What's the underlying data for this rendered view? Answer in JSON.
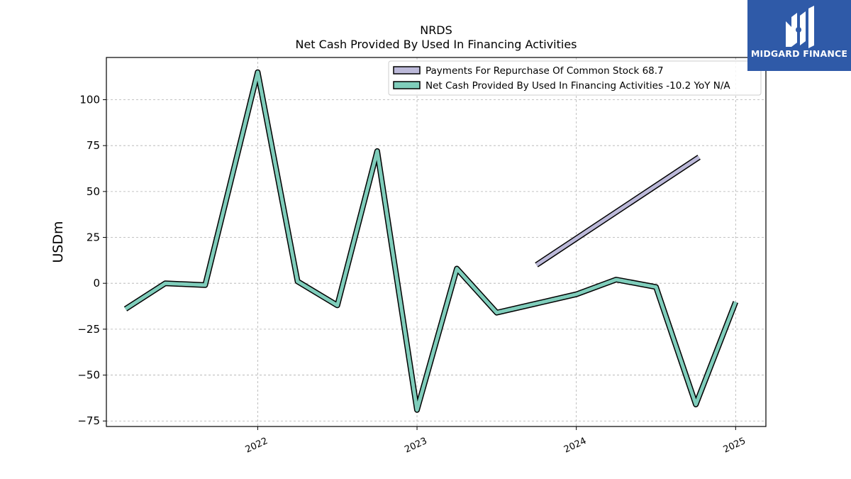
{
  "header": {
    "ticker": "NRDS",
    "subtitle": "Net Cash Provided By Used In Financing Activities"
  },
  "logo": {
    "text": "MIDGARD FINANCE",
    "icon": "midgard-logo-icon",
    "background": "#2f5aa8"
  },
  "chart_data": {
    "type": "line",
    "title": "NRDS",
    "subtitle": "Net Cash Provided By Used In Financing Activities",
    "ylabel": "USDm",
    "xlabel": "",
    "ylim": [
      -78,
      123
    ],
    "xlim": [
      2021.05,
      2025.19
    ],
    "x_ticks": [
      2022,
      2023,
      2024,
      2025
    ],
    "x_tick_labels": [
      "2022",
      "2023",
      "2024",
      "2025"
    ],
    "y_ticks": [
      -75,
      -50,
      -25,
      0,
      25,
      50,
      75,
      100
    ],
    "y_tick_labels": [
      "−75",
      "−50",
      "−25",
      "0",
      "25",
      "50",
      "75",
      "100"
    ],
    "grid": true,
    "legend_position": "top-right",
    "series": [
      {
        "name": "Payments For Repurchase Of Common Stock",
        "legend_label": "Payments For Repurchase Of Common Stock  68.7",
        "color": "#bcb9d9",
        "x": [
          2023.75,
          2024.77
        ],
        "y": [
          10,
          68.7
        ]
      },
      {
        "name": "Net Cash Provided By Used In Financing Activities",
        "legend_label": "Net Cash Provided By Used In Financing Activities  -10.2 YoY N/A",
        "color": "#7fcdbb",
        "x": [
          2021.17,
          2021.42,
          2021.67,
          2022.0,
          2022.25,
          2022.5,
          2022.75,
          2023.0,
          2023.25,
          2023.5,
          2023.75,
          2024.0,
          2024.25,
          2024.5,
          2024.75,
          2025.0
        ],
        "y": [
          -14,
          0,
          -1,
          115,
          1,
          -12,
          72,
          -69,
          8,
          -16,
          -11,
          -6,
          2,
          -2,
          -66,
          -10.2
        ]
      }
    ]
  }
}
